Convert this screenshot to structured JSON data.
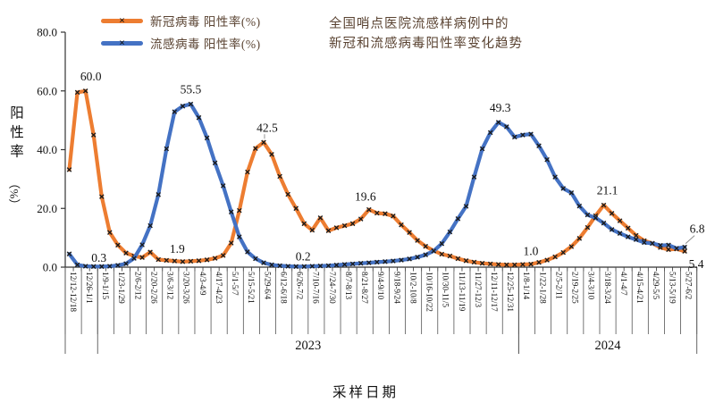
{
  "title": {
    "line1": "全国哨点医院流感样病例中的",
    "line2": "新冠和流感病毒阳性率变化趋势"
  },
  "legend": {
    "items": [
      {
        "label": "新冠病毒 阳性率(%)",
        "color": "#ED7D31"
      },
      {
        "label": "流感病毒 阳性率(%)",
        "color": "#4472C4"
      }
    ]
  },
  "y_axis": {
    "title": "阳性率",
    "title_pct": "（%）"
  },
  "x_axis": {
    "title": "采样日期"
  },
  "chart_data": {
    "type": "line",
    "title": "全国哨点医院流感样病例中的新冠和流感病毒阳性率变化趋势",
    "xlabel": "采样日期",
    "ylabel": "阳性率（%）",
    "ylim": [
      0,
      80
    ],
    "grid": false,
    "legend_position": "top-left",
    "marker": "x",
    "y_ticks": [
      "0.0",
      "20.0",
      "40.0",
      "60.0",
      "80.0"
    ],
    "weeks_per_label": 2,
    "x_labels": [
      "12/12-12/18",
      "12/26-1/1",
      "1/9-1/15",
      "1/23-1/29",
      "2/6-2/12",
      "2/20-2/26",
      "3/6-3/12",
      "3/20-3/26",
      "4/3-4/9",
      "4/17-4/23",
      "5/1-5/7",
      "5/15-5/21",
      "5/29-6/4",
      "6/12-6/18",
      "6/26-7/2",
      "7/10-7/16",
      "7/24-7/30",
      "8/7-8/13",
      "8/21-8/27",
      "9/4-9/10",
      "9/18-9/24",
      "10/2-10/8",
      "10/16-10/22",
      "10/30-11/5",
      "11/13-11/19",
      "11/27-12/3",
      "12/11-12/17",
      "12/25-12/31",
      "1/8-1/14",
      "1/22-1/28",
      "2/5-2/11",
      "2/19-2/25",
      "3/4-3/10",
      "3/18-3/24",
      "4/1-4/7",
      "4/15-4/21",
      "4/29-5/5",
      "5/13-5/19",
      "5/27-6/2"
    ],
    "year_groups": [
      {
        "label": "2023",
        "start_cell": 2,
        "end_cell": 28
      },
      {
        "label": "2024",
        "start_cell": 28,
        "end_cell": 39
      }
    ],
    "extra_separator_cells": [
      0
    ],
    "series": [
      {
        "id": "covid",
        "name": "新冠病毒 阳性率(%)",
        "color": "#ED7D31",
        "values": [
          33.2,
          59.5,
          60.0,
          45.0,
          24.0,
          11.8,
          7.5,
          4.8,
          3.8,
          3.3,
          5.1,
          2.6,
          2.3,
          2.1,
          1.9,
          2.0,
          2.2,
          2.5,
          3.0,
          4.0,
          8.2,
          19.3,
          32.4,
          40.4,
          42.5,
          38.4,
          30.9,
          24.8,
          20.0,
          14.8,
          12.6,
          16.8,
          12.4,
          13.4,
          14.1,
          14.8,
          16.4,
          19.6,
          18.4,
          18.2,
          17.4,
          14.4,
          11.8,
          9.1,
          7.1,
          5.6,
          4.4,
          3.8,
          2.9,
          2.2,
          1.7,
          1.3,
          1.1,
          0.9,
          0.8,
          0.8,
          0.9,
          1.0,
          1.6,
          2.4,
          3.5,
          5.0,
          7.0,
          9.8,
          13.5,
          17.5,
          21.1,
          18.3,
          15.8,
          13.3,
          10.8,
          9.0,
          8.1,
          6.7,
          6.0,
          6.2,
          5.4
        ],
        "annotations": [
          {
            "index": 2,
            "text": "60.0",
            "dx": 6,
            "dy": -12
          },
          {
            "index": 14,
            "text": "1.9",
            "dx": -6,
            "dy": -10
          },
          {
            "index": 24,
            "text": "42.5",
            "dx": 4,
            "dy": -12,
            "leader": true
          },
          {
            "index": 37,
            "text": "19.6",
            "dx": -4,
            "dy": -10
          },
          {
            "index": 57,
            "text": "1.0",
            "dx": 0,
            "dy": -10
          },
          {
            "index": 66,
            "text": "21.1",
            "dx": 4,
            "dy": -12
          },
          {
            "index": 76,
            "text": "5.4",
            "dx": 13,
            "dy": 19
          }
        ]
      },
      {
        "id": "flu",
        "name": "流感病毒 阳性率(%)",
        "color": "#4472C4",
        "values": [
          4.5,
          0.8,
          0.3,
          0.2,
          0.2,
          0.3,
          0.6,
          1.2,
          3.0,
          7.6,
          14.1,
          24.7,
          40.3,
          52.9,
          54.8,
          55.5,
          50.9,
          44.0,
          35.5,
          27.7,
          18.8,
          10.3,
          5.2,
          2.9,
          1.5,
          0.8,
          0.5,
          0.3,
          0.2,
          0.2,
          0.3,
          0.4,
          0.5,
          0.7,
          0.9,
          1.1,
          1.3,
          1.5,
          1.7,
          1.9,
          2.1,
          2.4,
          2.8,
          3.4,
          4.2,
          5.5,
          8.0,
          12.0,
          16.5,
          20.7,
          30.7,
          40.3,
          45.8,
          49.3,
          47.8,
          44.3,
          45.0,
          45.3,
          41.3,
          36.6,
          30.7,
          26.8,
          25.3,
          20.8,
          17.8,
          16.8,
          15.0,
          12.8,
          11.5,
          10.3,
          9.4,
          8.4,
          8.1,
          7.4,
          7.5,
          6.4,
          6.8
        ],
        "annotations": [
          {
            "index": 2,
            "text": "0.3",
            "dx": 15,
            "dy": -5
          },
          {
            "index": 15,
            "text": "55.5",
            "dx": 0,
            "dy": -12
          },
          {
            "index": 28,
            "text": "0.2",
            "dx": 8,
            "dy": -7
          },
          {
            "index": 53,
            "text": "49.3",
            "dx": 2,
            "dy": -12
          },
          {
            "index": 76,
            "text": "6.8",
            "dx": 14,
            "dy": -16,
            "leader": true
          }
        ]
      }
    ]
  }
}
